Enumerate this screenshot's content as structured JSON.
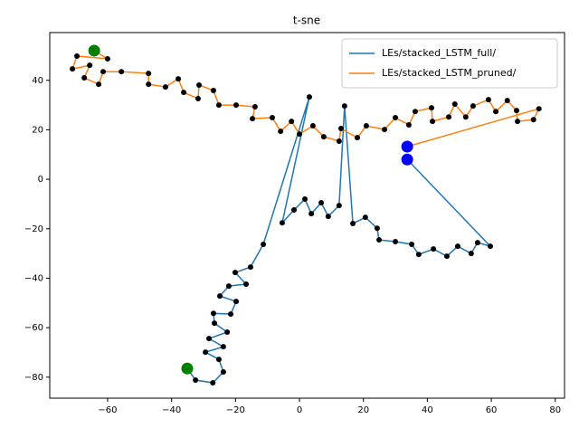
{
  "chart_data": {
    "type": "line",
    "title": "t-sne",
    "xlim": [
      -78.1,
      82.9
    ],
    "ylim": [
      -88.5,
      59.3
    ],
    "xticks": [
      {
        "value": -60,
        "label": "−60"
      },
      {
        "value": -40,
        "label": "−40"
      },
      {
        "value": -20,
        "label": "−20"
      },
      0,
      20,
      40,
      60,
      80
    ],
    "yticks": [
      {
        "value": -80,
        "label": "−80"
      },
      {
        "value": -60,
        "label": "−60"
      },
      {
        "value": -40,
        "label": "−40"
      },
      {
        "value": -20,
        "label": "−20"
      },
      0,
      20,
      40
    ],
    "legend": "upper right",
    "point_color": "black",
    "start_marker_color": "green",
    "end_marker_color": "blue",
    "series": [
      {
        "name": "LEs/stacked_LSTM_full/",
        "color": "#1f77b4",
        "x": [
          -35.1,
          -32.5,
          -27.1,
          -23.8,
          -25.2,
          -29.4,
          -23.8,
          -28.3,
          -22.6,
          -26.6,
          -26.9,
          -21.5,
          -19.8,
          -24.9,
          -22.1,
          -16.7,
          -20.1,
          -15.3,
          -11.3,
          3.1,
          -5.4,
          -1.7,
          1.7,
          3.7,
          6.8,
          9.0,
          12.4,
          14.1,
          16.7,
          20.6,
          24.3,
          24.9,
          30.0,
          35.1,
          37.3,
          41.9,
          46.1,
          49.5,
          53.7,
          55.7,
          59.7,
          33.7
        ],
        "values": [
          -76.5,
          -81.2,
          -82.3,
          -77.9,
          -72.8,
          -69.9,
          -67.7,
          -64.4,
          -61.8,
          -58.2,
          -54.2,
          -54.5,
          -49.4,
          -47.2,
          -43.2,
          -42.4,
          -37.7,
          -35.5,
          -26.3,
          33.3,
          -17.6,
          -12.4,
          -8.0,
          -13.9,
          -9.5,
          -15.0,
          -10.6,
          29.6,
          -17.9,
          -15.4,
          -19.8,
          -24.5,
          -25.2,
          -26.3,
          -30.4,
          -28.2,
          -31.1,
          -27.1,
          -30.0,
          -25.6,
          -27.1,
          8.0
        ]
      },
      {
        "name": "LEs/stacked_LSTM_pruned/",
        "color": "#ff7f0e",
        "x": [
          -64.2,
          -60.0,
          -69.6,
          -71.0,
          -65.6,
          -67.3,
          -62.8,
          -61.4,
          -55.7,
          -47.2,
          -47.2,
          -41.9,
          -37.9,
          -36.2,
          -31.7,
          -31.4,
          -26.9,
          -25.2,
          -19.8,
          -13.9,
          -14.7,
          -8.5,
          -5.9,
          -2.5,
          0,
          4.2,
          7.6,
          12.4,
          13.0,
          18.1,
          20.9,
          26.6,
          30.0,
          34.2,
          36.2,
          41.3,
          41.6,
          46.7,
          48.6,
          52.0,
          54.3,
          59.1,
          61.4,
          65.0,
          67.9,
          68.2,
          73.2,
          74.9,
          33.7
        ],
        "values": [
          52.0,
          48.7,
          49.8,
          44.6,
          46.1,
          41.0,
          38.4,
          43.5,
          43.5,
          42.8,
          38.4,
          37.3,
          40.6,
          35.1,
          32.6,
          38.1,
          35.9,
          30.0,
          30.0,
          29.3,
          24.5,
          24.9,
          19.4,
          23.4,
          18.3,
          21.6,
          17.2,
          15.4,
          20.5,
          16.8,
          21.6,
          20.1,
          24.9,
          22.0,
          27.4,
          28.9,
          23.4,
          25.2,
          30.4,
          25.2,
          29.6,
          32.2,
          27.4,
          31.8,
          27.8,
          23.4,
          24.1,
          28.5,
          13.2
        ]
      }
    ]
  }
}
